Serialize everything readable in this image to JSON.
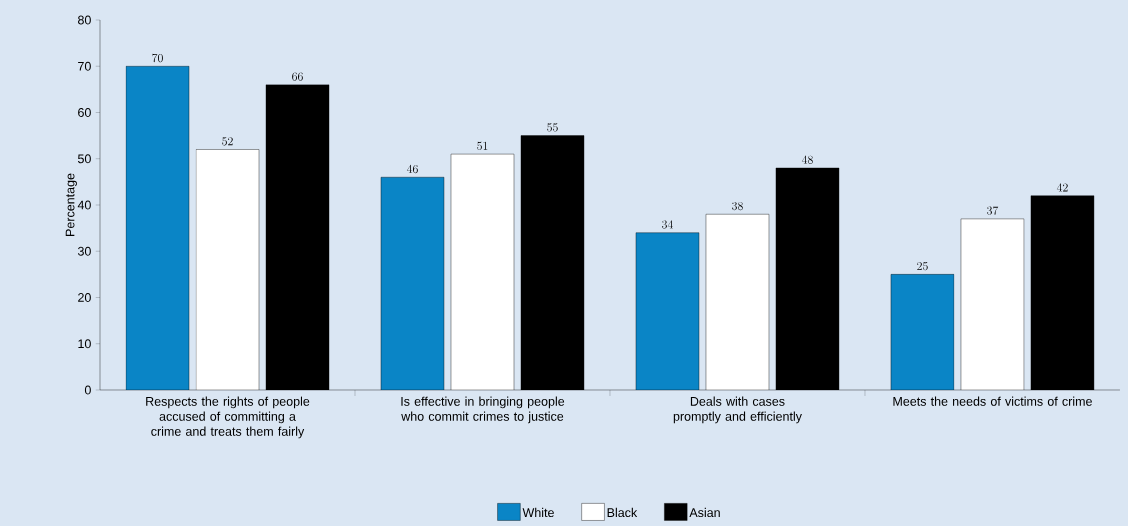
{
  "chart_data": {
    "type": "bar",
    "ylabel": "Percentage",
    "categories": [
      "Respects the rights of people accused of committing a crime and treats them fairly",
      "Is effective in bringing people who commit crimes to justice",
      "Deals with cases promptly and efficiently",
      "Meets the needs of victims of crime"
    ],
    "series": [
      {
        "name": "White",
        "color": "#0a85c6",
        "values": [
          70,
          46,
          34,
          25
        ]
      },
      {
        "name": "Black",
        "color": "#ffffff",
        "values": [
          52,
          51,
          38,
          37
        ]
      },
      {
        "name": "Asian",
        "color": "#000000",
        "values": [
          66,
          55,
          48,
          42
        ]
      }
    ],
    "ylim": [
      0,
      80
    ],
    "yticks": [
      0,
      10,
      20,
      30,
      40,
      50,
      60,
      70,
      80
    ],
    "data_labels": true,
    "legend": "bottom",
    "grid": false
  }
}
